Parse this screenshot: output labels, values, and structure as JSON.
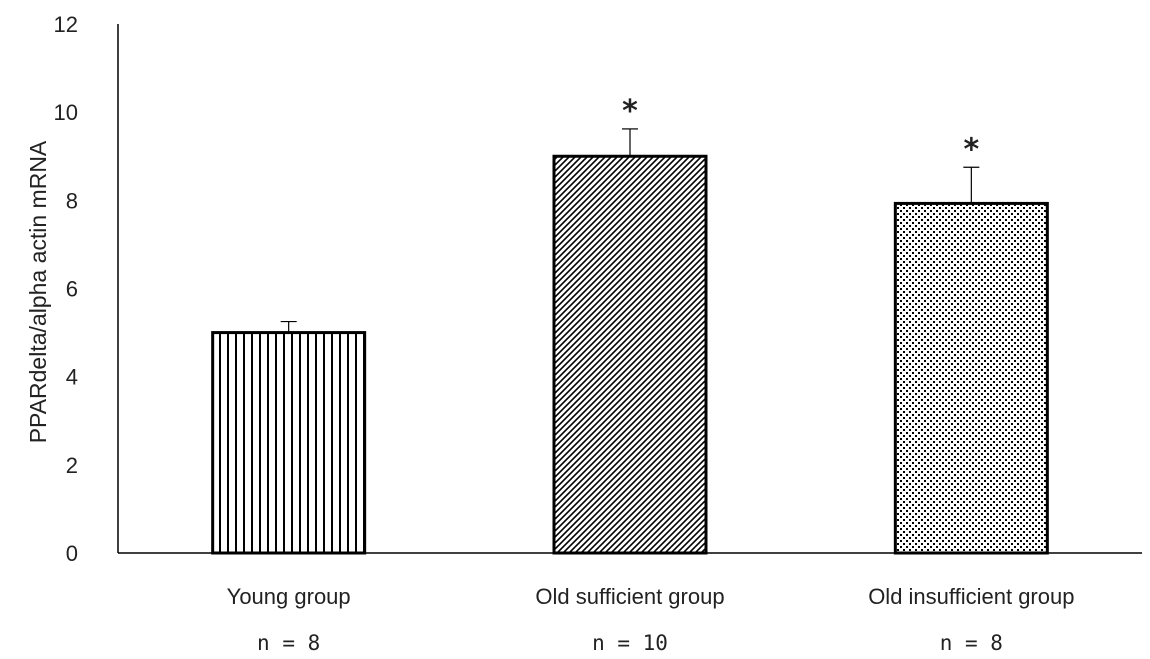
{
  "chart_data": {
    "type": "bar",
    "categories": [
      "Young group",
      "Old sufficient group",
      "Old insufficient group"
    ],
    "sample_sizes": [
      "n = 8",
      "n = 10",
      "n = 8"
    ],
    "values": [
      5.0,
      9.0,
      7.93
    ],
    "errors": [
      0.25,
      0.62,
      0.82
    ],
    "significance": [
      "",
      "*",
      "*"
    ],
    "patterns": [
      "vertical-lines",
      "diagonal-hatch",
      "dots"
    ],
    "ylabel": "PPARdelta/alpha actin mRNA",
    "xlabel": "",
    "ylim": [
      0,
      12
    ],
    "yticks": [
      "0",
      "2",
      "4",
      "6",
      "8",
      "10",
      "12"
    ],
    "grid": false,
    "colors": {
      "bar_fill": "#ffffff",
      "bar_stroke": "#000000",
      "pattern": "#000000",
      "axis": "#000000"
    }
  }
}
